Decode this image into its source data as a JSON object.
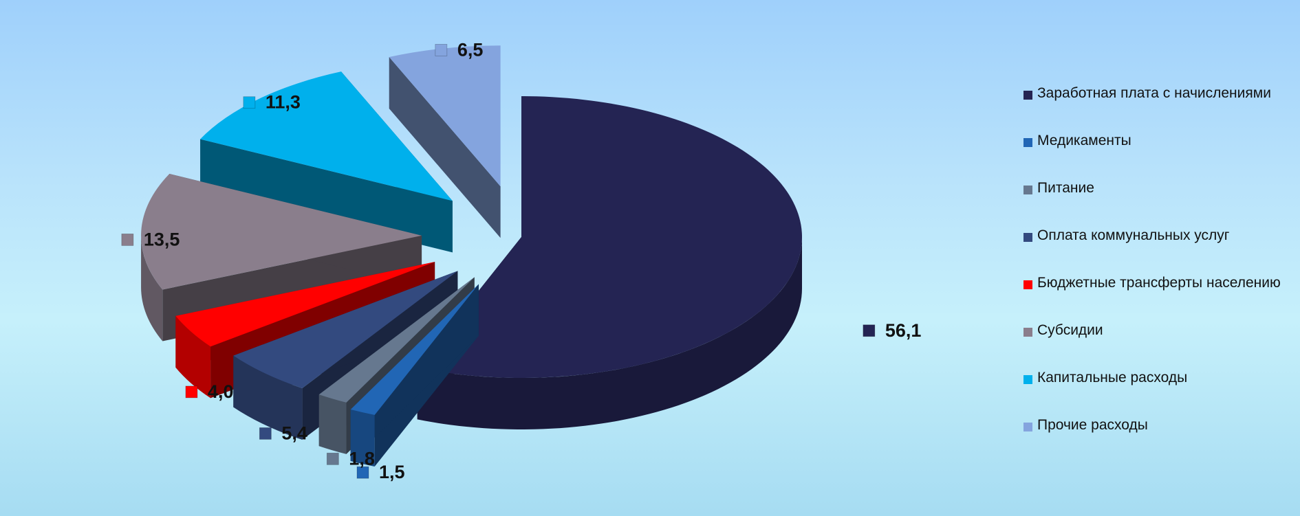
{
  "chart_data": {
    "type": "pie",
    "style": "3d-exploded",
    "series": [
      {
        "values": [
          56.1,
          1.5,
          1.8,
          5.4,
          4.0,
          13.5,
          11.3,
          6.5
        ],
        "value_labels": [
          "56,1",
          "1,5",
          "1,8",
          "5,4",
          "4,0",
          "13,5",
          "11,3",
          "6,5"
        ]
      }
    ],
    "categories": [
      "Заработная плата с начислениями",
      "Медикаменты",
      "Питание",
      "Оплата коммунальных услуг",
      "Бюджетные трансферты населению",
      "Субсидии",
      "Капитальные расходы",
      "Прочие расходы"
    ],
    "colors": [
      "#242453",
      "#2166b5",
      "#66788f",
      "#334a7f",
      "#ff0000",
      "#8a7e8c",
      "#00b0ec",
      "#84a4de"
    ],
    "legend_position": "right",
    "title": ""
  }
}
